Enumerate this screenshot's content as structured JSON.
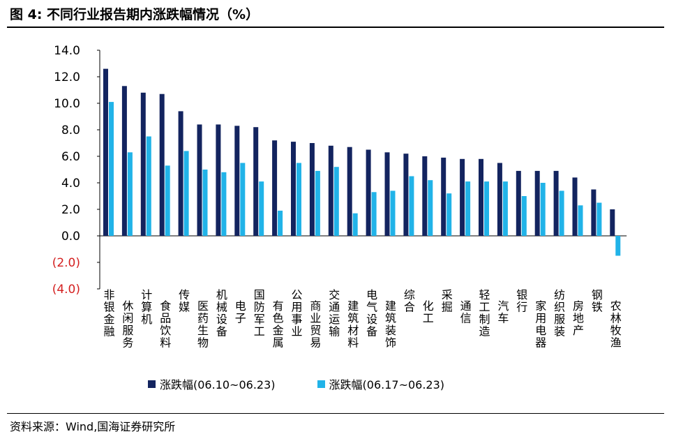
{
  "header": {
    "title": "图 4:  不同行业报告期内涨跌幅情况（%）"
  },
  "footer": {
    "source": "资料来源：Wind,国海证券研究所"
  },
  "colors": {
    "series1": "#13245f",
    "series2": "#21b3e8",
    "negative_label": "#d42020",
    "axis": "#000000"
  },
  "chart_data": {
    "type": "bar",
    "categories": [
      "非银金融",
      "休闲服务",
      "计算机",
      "食品饮料",
      "传媒",
      "医药生物",
      "机械设备",
      "电子",
      "国防军工",
      "有色金属",
      "公用事业",
      "商业贸易",
      "交通运输",
      "建筑材料",
      "电气设备",
      "建筑装饰",
      "综合",
      "化工",
      "采掘",
      "通信",
      "轻工制造",
      "汽车",
      "银行",
      "家用电器",
      "纺织服装",
      "房地产",
      "钢铁",
      "农林牧渔"
    ],
    "series": [
      {
        "name": "涨跌幅(06.10~06.23)",
        "values": [
          12.6,
          11.3,
          10.8,
          10.7,
          9.4,
          8.4,
          8.4,
          8.3,
          8.2,
          7.2,
          7.1,
          7.0,
          6.8,
          6.7,
          6.5,
          6.3,
          6.2,
          6.0,
          5.9,
          5.8,
          5.8,
          5.5,
          4.9,
          4.9,
          4.9,
          4.4,
          3.5,
          2.0
        ]
      },
      {
        "name": "涨跌幅(06.17~06.23)",
        "values": [
          10.1,
          6.3,
          7.5,
          5.3,
          6.4,
          5.0,
          4.8,
          5.5,
          4.1,
          1.9,
          5.5,
          4.9,
          5.2,
          1.7,
          3.3,
          3.4,
          4.5,
          4.2,
          3.2,
          4.1,
          4.1,
          4.1,
          3.0,
          4.0,
          3.4,
          2.3,
          2.5,
          -1.5
        ]
      }
    ],
    "ylim": [
      -4.0,
      14.0
    ],
    "yticks": [
      "14.0",
      "12.0",
      "10.0",
      "8.0",
      "6.0",
      "4.0",
      "2.0",
      "0.0",
      "(2.0)",
      "(4.0)"
    ],
    "ytick_values": [
      14,
      12,
      10,
      8,
      6,
      4,
      2,
      0,
      -2,
      -4
    ],
    "grid": false,
    "legend": "bottom"
  }
}
